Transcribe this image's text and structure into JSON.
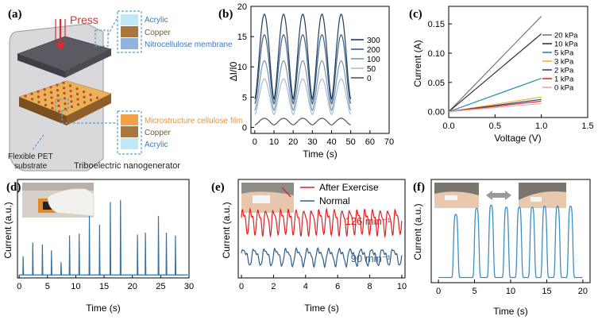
{
  "panels": {
    "a": {
      "label": "(a)",
      "press_label": "Press",
      "top_layers": [
        "Acrylic",
        "Copper",
        "Nitrocellulose membrane"
      ],
      "bottom_layers": [
        "Microstructure cellulose film",
        "Copper",
        "Acrylic"
      ],
      "substrate_label": [
        "Flexible PET",
        "substrate"
      ],
      "caption": "Triboelectric nanogenerator",
      "colors": {
        "acrylic": "#bfeaf5",
        "copper": "#a8763e",
        "nitro": "#8fb3e0",
        "micro": "#f3a04a",
        "label_blue": "#3a78c0",
        "label_orange": "#e8923a"
      }
    },
    "b": {
      "label": "(b)",
      "chart_data": {
        "type": "line",
        "xlabel": "Time (s)",
        "ylabel": "ΔI/I0",
        "xlim": [
          -2,
          70
        ],
        "ylim": [
          -1,
          20
        ],
        "xticks": [
          0,
          10,
          20,
          30,
          40,
          50,
          60,
          70
        ],
        "yticks": [
          0,
          5,
          10,
          15,
          20
        ],
        "period_s": 10,
        "peak_times_s": [
          5,
          15,
          25,
          35,
          45
        ],
        "time_range_s": [
          0,
          50
        ],
        "series": [
          {
            "name": "300",
            "peak": 18.7,
            "trough": 4.7,
            "color": "#1f3d5c"
          },
          {
            "name": "200",
            "peak": 15.3,
            "trough": 3.9,
            "color": "#3c5f80"
          },
          {
            "name": "100",
            "peak": 11.0,
            "trough": 2.8,
            "color": "#7a97b4"
          },
          {
            "name": "50",
            "peak": 8.0,
            "trough": 2.1,
            "color": "#a9bccf"
          },
          {
            "name": "0",
            "peak": 1.5,
            "trough": 0.4,
            "color": "#555555"
          }
        ],
        "legend": [
          "300",
          "200",
          "100",
          "50",
          "0"
        ]
      }
    },
    "c": {
      "label": "(c)",
      "chart_data": {
        "type": "line",
        "xlabel": "Voltage (V)",
        "ylabel": "Current (A)",
        "xlim": [
          0,
          1.5
        ],
        "ylim": [
          -0.01,
          0.18
        ],
        "xticks": [
          "0.0",
          "0.5",
          "1.0",
          "1.5"
        ],
        "yticks": [
          "0.00",
          "0.05",
          "0.10",
          "0.15"
        ],
        "x_end": 1.0,
        "series": [
          {
            "name": "20 kPa",
            "slope": 0.163,
            "color": "#777777"
          },
          {
            "name": "10 kPa",
            "slope": 0.133,
            "color": "#333333"
          },
          {
            "name": "5 kPa",
            "slope": 0.057,
            "color": "#2d8ab4"
          },
          {
            "name": "3 kPa",
            "slope": 0.025,
            "color": "#f0b030"
          },
          {
            "name": "2 kPa",
            "slope": 0.021,
            "color": "#1f4a8a"
          },
          {
            "name": "1 kPa",
            "slope": 0.018,
            "color": "#d83030"
          },
          {
            "name": "0 kPa",
            "slope": 0.014,
            "color": "#e8a8a8"
          }
        ]
      }
    },
    "d": {
      "label": "(d)",
      "chart_data": {
        "type": "line",
        "xlabel": "Time (s)",
        "ylabel": "Current (a.u.)",
        "xlim": [
          -0.3,
          30
        ],
        "xticks": [
          0,
          5,
          10,
          15,
          20,
          25,
          30
        ],
        "baseline": 0.03,
        "spikes": [
          {
            "t": 0.7,
            "h": 0.22
          },
          {
            "t": 2.4,
            "h": 0.36
          },
          {
            "t": 4.1,
            "h": 0.34
          },
          {
            "t": 5.7,
            "h": 0.28
          },
          {
            "t": 7.4,
            "h": 0.16
          },
          {
            "t": 8.9,
            "h": 0.43
          },
          {
            "t": 10.6,
            "h": 0.45
          },
          {
            "t": 12.4,
            "h": 0.63
          },
          {
            "t": 14.2,
            "h": 0.54
          },
          {
            "t": 16.1,
            "h": 0.77
          },
          {
            "t": 17.9,
            "h": 0.79
          },
          {
            "t": 20.9,
            "h": 0.44
          },
          {
            "t": 22.3,
            "h": 0.46
          },
          {
            "t": 24.6,
            "h": 0.63
          },
          {
            "t": 26.0,
            "h": 0.46
          },
          {
            "t": 27.6,
            "h": 0.43
          }
        ],
        "line_color": "#3173a8"
      }
    },
    "e": {
      "label": "(e)",
      "chart_data": {
        "type": "line",
        "xlabel": "Time (s)",
        "ylabel": "Current (a.u.)",
        "xlim": [
          -0.2,
          10.2
        ],
        "xticks": [
          0,
          2,
          4,
          6,
          8,
          10
        ],
        "series": [
          {
            "name": "After Exercise",
            "rate_per_min": 126,
            "rate_label": "126 min⁻¹",
            "color": "#e02020",
            "amplitude": 0.18,
            "offset": 0.58
          },
          {
            "name": "Normal",
            "rate_per_min": 90,
            "rate_label": "90 min⁻¹",
            "color": "#2f5d8c",
            "amplitude": 0.12,
            "offset": 0.22
          }
        ]
      }
    },
    "f": {
      "label": "(f)",
      "chart_data": {
        "type": "line",
        "xlabel": "Time (s)",
        "ylabel": "Current (a.u.)",
        "xlim": [
          -1,
          21
        ],
        "xticks": [
          0,
          5,
          10,
          15,
          20
        ],
        "baseline": 0.05,
        "peak_times_s": [
          2.4,
          5.3,
          7.3,
          9.4,
          11.2,
          13.0,
          14.7,
          16.5,
          18.3
        ],
        "peak_heights": [
          0.66,
          0.72,
          0.75,
          0.73,
          0.73,
          0.73,
          0.74,
          0.74,
          0.74
        ],
        "line_color": "#3c8fbf"
      }
    }
  }
}
